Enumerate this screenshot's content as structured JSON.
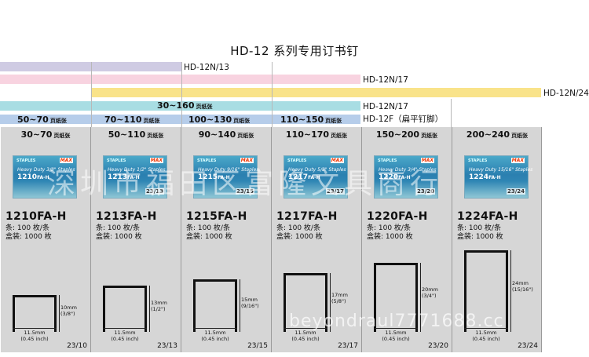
{
  "title": "HD-12 系列专用订书钉",
  "bars": [
    {
      "label": "HD-12N/13",
      "color": "#cfcbe3"
    },
    {
      "label": "HD-12N/17",
      "color": "#f8d3e0"
    },
    {
      "label": "HD-12N/24",
      "color": "#f9e38a"
    },
    {
      "label": "HD-12N/17",
      "color": "#a8dde3"
    },
    {
      "label": "HD-12F（扁平钉脚）",
      "color": "#b6cdea"
    }
  ],
  "capacity_bar_text": {
    "range": "30~160",
    "unit": "页纸张"
  },
  "flat_ranges": [
    {
      "range": "50~70",
      "unit": "页纸张"
    },
    {
      "range": "70~110",
      "unit": "页纸张"
    },
    {
      "range": "100~130",
      "unit": "页纸张"
    },
    {
      "range": "110~150",
      "unit": "页纸张"
    }
  ],
  "products": [
    {
      "range": "30~70",
      "unit": "页纸张",
      "box_hd": "Heavy Duty 3/8\" Staples",
      "box_code": "1210",
      "box_suffix": "FA-H",
      "box_side": "",
      "model": "1210FA-H",
      "pcs": "条: 100 枚/条",
      "box": "盒装: 1000 枚",
      "height_mm": "10mm",
      "height_in": "(3/8\")",
      "width_mm": "11.5mm",
      "width_in": "(0.45 inch)",
      "code": "23/10"
    },
    {
      "range": "50~110",
      "unit": "页纸张",
      "box_hd": "Heavy Duty 1/2\" Staples",
      "box_code": "1213",
      "box_suffix": "FA-H",
      "box_side": "23/13",
      "model": "1213FA-H",
      "pcs": "条: 100 枚/条",
      "box": "盒装: 1000 枚",
      "height_mm": "13mm",
      "height_in": "(1/2\")",
      "width_mm": "11.5mm",
      "width_in": "(0.45 inch)",
      "code": "23/13"
    },
    {
      "range": "90~140",
      "unit": "页纸张",
      "box_hd": "Heavy Duty 9/16\" Staples",
      "box_code": "1215",
      "box_suffix": "FA-H",
      "box_side": "23/15",
      "model": "1215FA-H",
      "pcs": "条: 100 枚/条",
      "box": "盒装: 1000 枚",
      "height_mm": "15mm",
      "height_in": "(9/16\")",
      "width_mm": "11.5mm",
      "width_in": "(0.45 inch)",
      "code": "23/15"
    },
    {
      "range": "110~170",
      "unit": "页纸张",
      "box_hd": "Heavy Duty 5/8\" Staples",
      "box_code": "1217",
      "box_suffix": "FA-H",
      "box_side": "23/17",
      "model": "1217FA-H",
      "pcs": "条: 100 枚/条",
      "box": "盒装: 1000 枚",
      "height_mm": "17mm",
      "height_in": "(5/8\")",
      "width_mm": "11.5mm",
      "width_in": "(0.45 inch)",
      "code": "23/17"
    },
    {
      "range": "150~200",
      "unit": "页纸张",
      "box_hd": "Heavy Duty 3/4\" Staples",
      "box_code": "1220",
      "box_suffix": "FA-H",
      "box_side": "23/20",
      "model": "1220FA-H",
      "pcs": "条: 100 枚/条",
      "box": "盒装: 1000 枚",
      "height_mm": "20mm",
      "height_in": "(3/4\")",
      "width_mm": "11.5mm",
      "width_in": "(0.45 inch)",
      "code": "23/20"
    },
    {
      "range": "200~240",
      "unit": "页纸张",
      "box_hd": "Heavy Duty 15/16\" Staples",
      "box_code": "1224",
      "box_suffix": "FA-H",
      "box_side": "23/24",
      "model": "1224FA-H",
      "pcs": "条: 100 枚/条",
      "box": "盒装: 1000 枚",
      "height_mm": "24mm",
      "height_in": "(15/16\")",
      "width_mm": "11.5mm",
      "width_in": "(0.45 inch)",
      "code": "23/24"
    }
  ],
  "watermark": "深圳市福田区富隆文具商行",
  "watermark_url": "beyondraul7771688.cc",
  "brand": {
    "staples": "STAPLES",
    "max": "MAX"
  }
}
